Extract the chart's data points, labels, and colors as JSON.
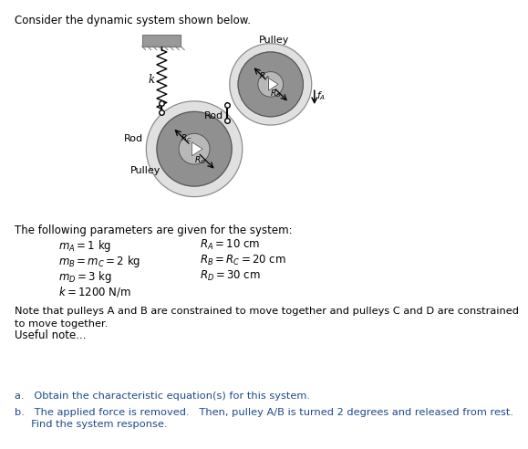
{
  "title": "Consider the dynamic system shown below.",
  "bg_color": "#ffffff",
  "text_color": "#000000",
  "pulley_outer_color": "#d8d8d8",
  "pulley_mid_color": "#b0b0b0",
  "pulley_inner_color": "#888888",
  "pulley_center_color": "#aaaaaa",
  "wall_color": "#999999",
  "params_text": [
    [
      "$m_A = 1$ kg",
      "$R_A = 10$ cm"
    ],
    [
      "$m_B = m_C = 2$ kg",
      "$R_B = R_C = 20$ cm"
    ],
    [
      "$m_D = 3$ kg",
      "$R_D = 30$ cm"
    ],
    [
      "$k = 1200$ N/m",
      ""
    ]
  ],
  "note_text": "Note that pulleys A and B are constrained to move together and pulleys C and D are constrained\nto move together.",
  "useful_note": "Useful note...",
  "q_a": "a.   Obtain the characteristic equation(s) for this system.",
  "q_b_1": "b.   The applied force is removed.   Then, pulley A/B is turned 2 degrees and released from rest.",
  "q_b_2": "     Find the system response."
}
